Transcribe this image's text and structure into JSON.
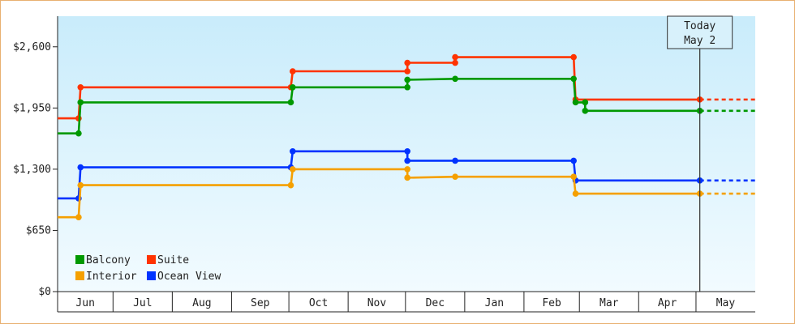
{
  "chart_data": {
    "type": "line",
    "step": true,
    "ylim": [
      0,
      2925
    ],
    "y_ticks": [
      {
        "value": 0,
        "label": "$0"
      },
      {
        "value": 650,
        "label": "$650"
      },
      {
        "value": 1300,
        "label": "$1,300"
      },
      {
        "value": 1950,
        "label": "$1,950"
      },
      {
        "value": 2600,
        "label": "$2,600"
      }
    ],
    "x_range": [
      "2023-06-01",
      "2024-05-31"
    ],
    "months": [
      {
        "label": "Jun",
        "start": "2023-06-01",
        "end": "2023-06-30"
      },
      {
        "label": "Jul",
        "start": "2023-06-30",
        "end": "2023-07-31"
      },
      {
        "label": "Aug",
        "start": "2023-07-31",
        "end": "2023-08-31"
      },
      {
        "label": "Sep",
        "start": "2023-08-31",
        "end": "2023-09-30"
      },
      {
        "label": "Oct",
        "start": "2023-09-30",
        "end": "2023-10-31"
      },
      {
        "label": "Nov",
        "start": "2023-10-31",
        "end": "2023-11-30"
      },
      {
        "label": "Dec",
        "start": "2023-11-30",
        "end": "2023-12-31"
      },
      {
        "label": "Jan",
        "start": "2023-12-31",
        "end": "2024-01-31"
      },
      {
        "label": "Feb",
        "start": "2024-01-31",
        "end": "2024-02-29"
      },
      {
        "label": "Mar",
        "start": "2024-02-29",
        "end": "2024-03-31"
      },
      {
        "label": "Apr",
        "start": "2024-03-31",
        "end": "2024-04-30"
      },
      {
        "label": "May",
        "start": "2024-04-30",
        "end": "2024-05-31"
      }
    ],
    "today": {
      "line1": "Today",
      "line2": "May 2",
      "date": "2024-05-02"
    },
    "projection_end": "2024-05-31",
    "series": [
      {
        "name": "Suite",
        "color": "#ff3300",
        "points": [
          [
            "2023-06-01",
            1840
          ],
          [
            "2023-06-12",
            1840
          ],
          [
            "2023-06-13",
            2170
          ],
          [
            "2023-10-01",
            2170
          ],
          [
            "2023-10-02",
            2340
          ],
          [
            "2023-12-01",
            2340
          ],
          [
            "2023-12-01",
            2430
          ],
          [
            "2023-12-26",
            2430
          ],
          [
            "2023-12-26",
            2490
          ],
          [
            "2024-02-26",
            2490
          ],
          [
            "2024-02-27",
            2040
          ],
          [
            "2024-05-02",
            2040
          ]
        ]
      },
      {
        "name": "Balcony",
        "color": "#009900",
        "points": [
          [
            "2023-06-01",
            1680
          ],
          [
            "2023-06-12",
            1680
          ],
          [
            "2023-06-13",
            2010
          ],
          [
            "2023-10-01",
            2010
          ],
          [
            "2023-10-02",
            2170
          ],
          [
            "2023-12-01",
            2170
          ],
          [
            "2023-12-01",
            2250
          ],
          [
            "2023-12-26",
            2260
          ],
          [
            "2024-02-26",
            2260
          ],
          [
            "2024-02-27",
            2010
          ],
          [
            "2024-03-03",
            2010
          ],
          [
            "2024-03-03",
            1920
          ],
          [
            "2024-05-02",
            1920
          ]
        ]
      },
      {
        "name": "Ocean View",
        "color": "#0033ff",
        "points": [
          [
            "2023-06-01",
            990
          ],
          [
            "2023-06-12",
            990
          ],
          [
            "2023-06-13",
            1320
          ],
          [
            "2023-10-01",
            1320
          ],
          [
            "2023-10-02",
            1490
          ],
          [
            "2023-12-01",
            1490
          ],
          [
            "2023-12-01",
            1390
          ],
          [
            "2023-12-26",
            1390
          ],
          [
            "2024-02-26",
            1390
          ],
          [
            "2024-02-27",
            1180
          ],
          [
            "2024-05-02",
            1180
          ]
        ]
      },
      {
        "name": "Interior",
        "color": "#f5a000",
        "points": [
          [
            "2023-06-01",
            790
          ],
          [
            "2023-06-12",
            790
          ],
          [
            "2023-06-13",
            1130
          ],
          [
            "2023-10-01",
            1130
          ],
          [
            "2023-10-02",
            1300
          ],
          [
            "2023-12-01",
            1300
          ],
          [
            "2023-12-01",
            1210
          ],
          [
            "2023-12-26",
            1220
          ],
          [
            "2024-02-26",
            1220
          ],
          [
            "2024-02-27",
            1040
          ],
          [
            "2024-05-02",
            1040
          ]
        ]
      }
    ],
    "legend": {
      "placement": "bottom-left",
      "entries": [
        {
          "name": "Balcony",
          "color": "#009900"
        },
        {
          "name": "Suite",
          "color": "#ff3300"
        },
        {
          "name": "Interior",
          "color": "#f5a000"
        },
        {
          "name": "Ocean View",
          "color": "#0033ff"
        }
      ]
    }
  }
}
